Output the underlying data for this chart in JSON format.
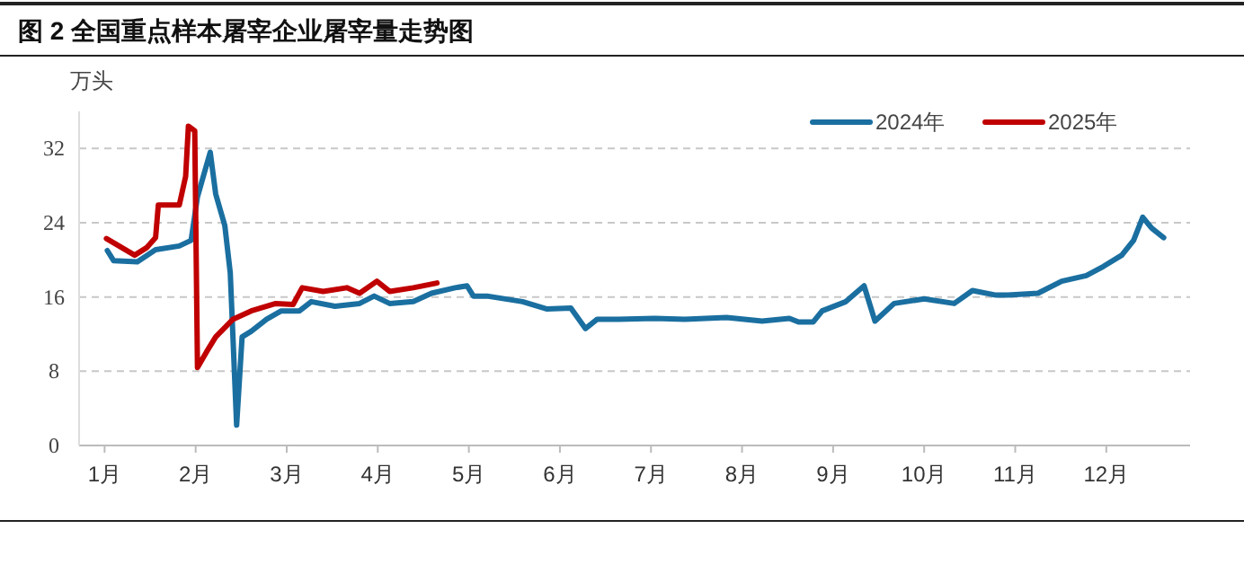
{
  "chart_data": {
    "type": "line",
    "title": "图 2 全国重点样本屠宰企业屠宰量走势图",
    "ylabel": "万头",
    "xlim": [
      0.72,
      12.92
    ],
    "xticks": [
      {
        "value": 1,
        "label": "1月"
      },
      {
        "value": 2,
        "label": "2月"
      },
      {
        "value": 3,
        "label": "3月"
      },
      {
        "value": 4,
        "label": "4月"
      },
      {
        "value": 5,
        "label": "5月"
      },
      {
        "value": 6,
        "label": "6月"
      },
      {
        "value": 7,
        "label": "7月"
      },
      {
        "value": 8,
        "label": "8月"
      },
      {
        "value": 9,
        "label": "9月"
      },
      {
        "value": 10,
        "label": "10月"
      },
      {
        "value": 11,
        "label": "11月"
      },
      {
        "value": 12,
        "label": "12月"
      }
    ],
    "ylim": [
      0,
      36
    ],
    "yticks": [
      0,
      8,
      16,
      24,
      32
    ],
    "grid": "y",
    "legend": "top right",
    "series": [
      {
        "name": "2024年",
        "color": "#1a6fa0",
        "x": [
          1.03,
          1.1,
          1.36,
          1.56,
          1.82,
          1.95,
          2.02,
          2.16,
          2.22,
          2.32,
          2.38,
          2.45,
          2.51,
          2.61,
          2.78,
          2.94,
          3.14,
          3.27,
          3.53,
          3.8,
          3.96,
          4.13,
          4.39,
          4.59,
          4.85,
          4.98,
          5.05,
          5.2,
          5.59,
          5.86,
          6.12,
          6.28,
          6.41,
          6.64,
          7.04,
          7.37,
          7.83,
          8.22,
          8.52,
          8.62,
          8.78,
          8.88,
          9.14,
          9.34,
          9.46,
          9.67,
          10.0,
          10.33,
          10.53,
          10.79,
          10.92,
          11.25,
          11.51,
          11.78,
          11.97,
          12.17,
          12.3,
          12.4,
          12.5,
          12.63
        ],
        "values": [
          21.0,
          19.9,
          19.8,
          21.1,
          21.5,
          22.1,
          26.8,
          31.6,
          27.1,
          23.7,
          18.6,
          2.2,
          11.7,
          12.3,
          13.6,
          14.5,
          14.5,
          15.5,
          15.0,
          15.3,
          16.1,
          15.3,
          15.5,
          16.4,
          17.0,
          17.2,
          16.1,
          16.1,
          15.5,
          14.7,
          14.8,
          12.6,
          13.6,
          13.6,
          13.7,
          13.6,
          13.8,
          13.4,
          13.7,
          13.3,
          13.3,
          14.5,
          15.5,
          17.2,
          13.4,
          15.3,
          15.8,
          15.3,
          16.7,
          16.2,
          16.2,
          16.4,
          17.7,
          18.3,
          19.3,
          20.5,
          22.1,
          24.6,
          23.4,
          22.4
        ]
      },
      {
        "name": "2025年",
        "color": "#c00000",
        "x": [
          1.02,
          1.33,
          1.46,
          1.56,
          1.59,
          1.82,
          1.89,
          1.92,
          1.99,
          2.02,
          2.12,
          2.22,
          2.41,
          2.61,
          2.88,
          3.07,
          3.17,
          3.4,
          3.66,
          3.8,
          3.99,
          4.13,
          4.39,
          4.65
        ],
        "values": [
          22.3,
          20.5,
          21.3,
          22.4,
          25.9,
          25.9,
          29.0,
          34.4,
          33.9,
          8.4,
          10.1,
          11.7,
          13.6,
          14.5,
          15.3,
          15.2,
          17.0,
          16.6,
          17.0,
          16.4,
          17.7,
          16.6,
          17.0,
          17.5
        ]
      }
    ]
  }
}
